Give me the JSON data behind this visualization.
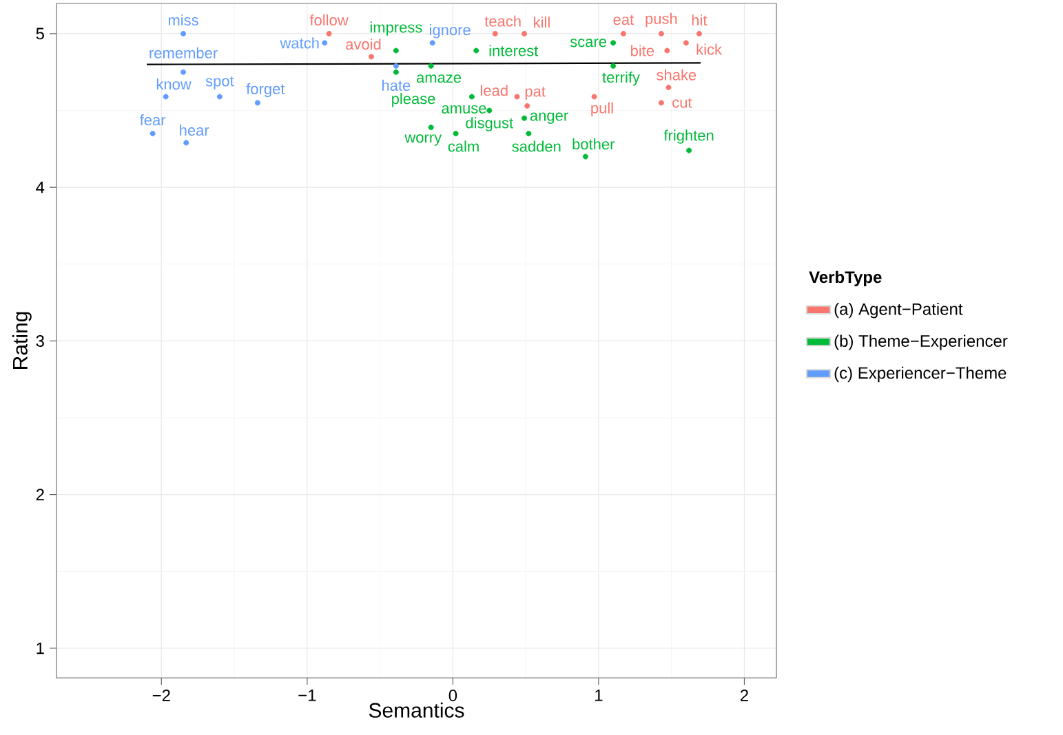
{
  "chart_data": {
    "type": "scatter",
    "xlabel": "Semantics",
    "ylabel": "Rating",
    "legend_title": "VerbType",
    "legend": "right",
    "grid": true,
    "marker": "circle",
    "xlim": [
      -2.72,
      2.22
    ],
    "ylim": [
      0.807,
      5.197
    ],
    "xticks": [
      {
        "value": -2,
        "label": "−2"
      },
      {
        "value": -1,
        "label": "−1"
      },
      0,
      1,
      2
    ],
    "yticks": [
      1,
      2,
      3,
      4,
      5
    ],
    "series": [
      {
        "name": "(a) Agent−Patient",
        "color": "#f8766d",
        "x": [
          -0.85,
          -0.56,
          0.29,
          0.49,
          1.17,
          1.43,
          1.69,
          1.6,
          1.47,
          0.44,
          0.51,
          0.97,
          1.48,
          1.43
        ],
        "values": [
          5.0,
          4.85,
          5.0,
          5.0,
          5.0,
          5.0,
          5.0,
          4.94,
          4.89,
          4.59,
          4.53,
          4.59,
          4.65,
          4.55
        ],
        "value_labels": [
          "follow",
          "avoid",
          "teach",
          "kill",
          "eat",
          "push",
          "hit",
          "kick",
          "bite",
          "lead",
          "pat",
          "pull",
          "shake",
          "cut"
        ]
      },
      {
        "name": "(b) Theme−Experiencer",
        "color": "#00ba38",
        "x": [
          -0.39,
          -0.39,
          -0.15,
          0.16,
          1.1,
          1.1,
          0.13,
          0.25,
          0.49,
          -0.15,
          0.02,
          0.52,
          0.91,
          1.62
        ],
        "values": [
          4.89,
          4.75,
          4.79,
          4.89,
          4.94,
          4.79,
          4.59,
          4.5,
          4.45,
          4.39,
          4.35,
          4.35,
          4.2,
          4.24
        ],
        "value_labels": [
          "impress",
          "please",
          "amaze",
          "interest",
          "scare",
          "terrify",
          "amuse",
          "disgust",
          "anger",
          "worry",
          "calm",
          "sadden",
          "bother",
          "frighten"
        ]
      },
      {
        "name": "(c) Experiencer−Theme",
        "color": "#619cff",
        "x": [
          -1.85,
          -1.85,
          -1.97,
          -1.6,
          -1.34,
          -2.06,
          -1.83,
          -0.14,
          -0.88,
          -0.39
        ],
        "values": [
          5.0,
          4.75,
          4.59,
          4.59,
          4.55,
          4.35,
          4.29,
          4.94,
          4.94,
          4.79
        ],
        "value_labels": [
          "miss",
          "remember",
          "know",
          "spot",
          "forget",
          "fear",
          "hear",
          "ignore",
          "watch",
          "hate"
        ]
      },
      {
        "type": "line",
        "marker": "none",
        "color": "#000000",
        "x": [
          -2.1,
          1.7
        ],
        "values": [
          4.8,
          4.81
        ]
      }
    ]
  }
}
